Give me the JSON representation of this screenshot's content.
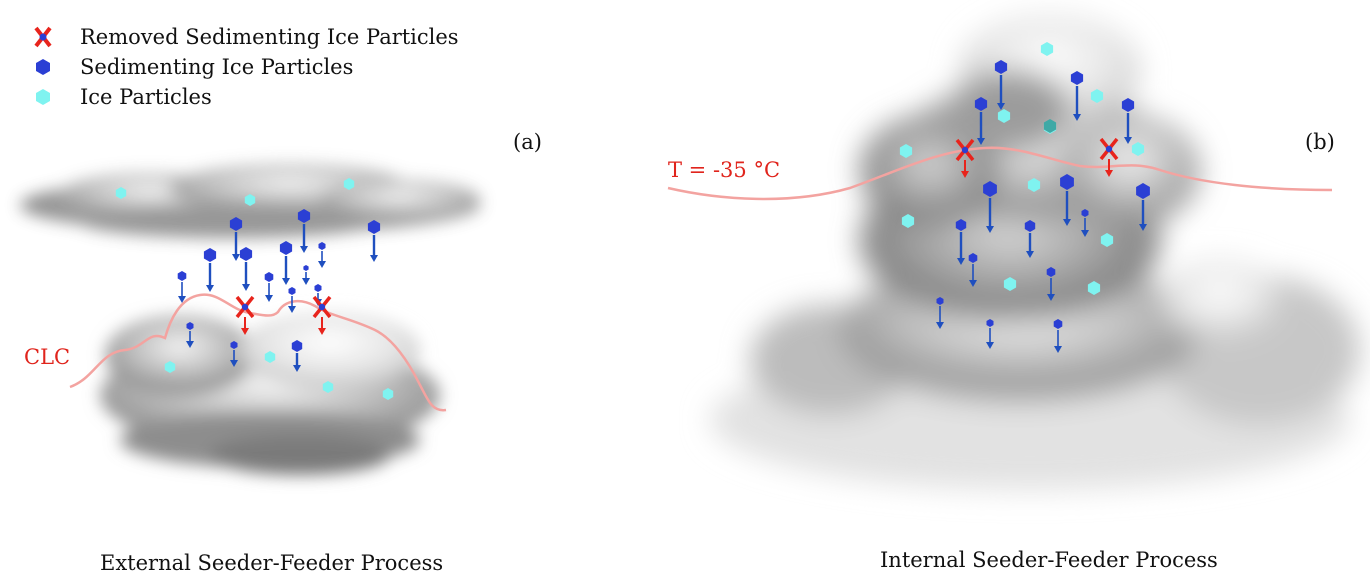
{
  "legend": [
    {
      "label": "Removed Sedimenting Ice Particles",
      "icon": "red-x-icon"
    },
    {
      "label": "Sedimenting Ice Particles",
      "icon": "blue-hexagon-icon"
    },
    {
      "label": "Ice Particles",
      "icon": "cyan-hexagon-icon"
    }
  ],
  "panels": [
    {
      "tag": "(a)",
      "boundary_label": "CLC",
      "caption": "External Seeder-Feeder Process"
    },
    {
      "tag": "(b)",
      "boundary_label": "T = -35 °C",
      "caption": "Internal Seeder-Feeder Process"
    }
  ],
  "colors": {
    "sedimenting": "#2b3fd4",
    "arrow": "#1f4fbf",
    "ice": "#7ff3f0",
    "removed": "#e8241c",
    "boundary": "#f3a3a0"
  }
}
